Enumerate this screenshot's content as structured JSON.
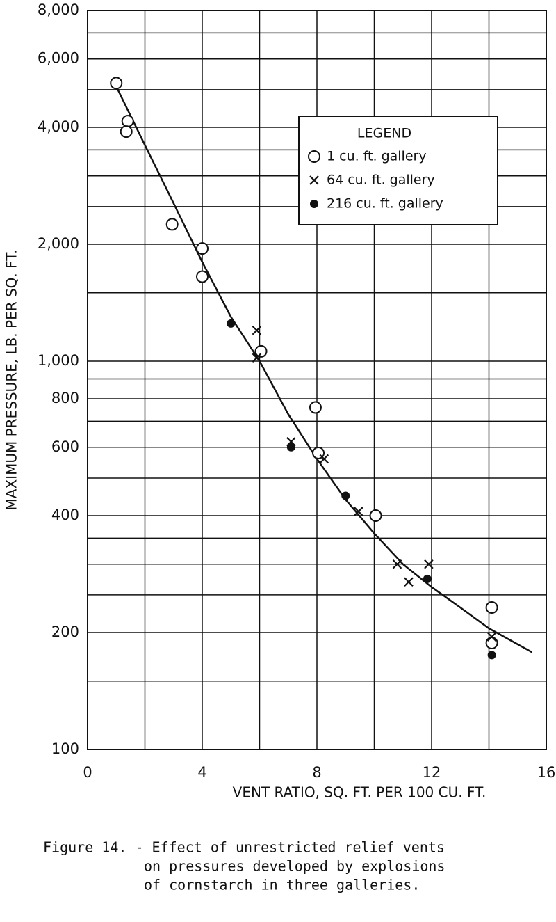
{
  "chart_data": {
    "type": "scatter",
    "y_label": "MAXIMUM PRESSURE, LB. PER SQ. FT.",
    "x_label": "VENT RATIO, SQ. FT. PER 100 CU. FT.",
    "log_y": true,
    "grid": true,
    "xlim": [
      0,
      16
    ],
    "xticks": [
      0,
      4,
      8,
      12,
      16
    ],
    "x_minor_ticks": [
      2,
      6,
      10,
      14
    ],
    "ylim": [
      100,
      8000
    ],
    "yticks": [
      100,
      200,
      400,
      600,
      800,
      {
        "value": 1000,
        "label": "1,000"
      },
      {
        "value": 2000,
        "label": "2,000"
      },
      {
        "value": 4000,
        "label": "4,000"
      },
      {
        "value": 6000,
        "label": "6,000"
      },
      {
        "value": 8000,
        "label": "8,000"
      }
    ],
    "y_minor_ticks": [
      150,
      250,
      300,
      350,
      500,
      700,
      900,
      1500,
      2500,
      3000,
      3500,
      5000,
      7000
    ],
    "legend_title": "LEGEND",
    "legend_position": "upper right",
    "series": [
      {
        "name": "1 cu. ft. gallery",
        "marker": "open-circle",
        "color": "#111111",
        "x": [
          1.0,
          1.4,
          1.35,
          2.95,
          4.0,
          4.0,
          6.05,
          7.95,
          8.05,
          10.05,
          14.1,
          14.1
        ],
        "values": [
          5200,
          4150,
          3900,
          2250,
          1950,
          1650,
          1060,
          760,
          580,
          400,
          232,
          188
        ]
      },
      {
        "name": "64 cu. ft. gallery",
        "marker": "cross",
        "color": "#111111",
        "x": [
          5.9,
          5.9,
          7.1,
          8.25,
          9.45,
          10.8,
          11.2,
          11.9,
          14.1
        ],
        "values": [
          1200,
          1020,
          620,
          560,
          410,
          300,
          270,
          300,
          195
        ]
      },
      {
        "name": "216 cu. ft. gallery",
        "marker": "filled-circle",
        "color": "#111111",
        "x": [
          5.0,
          7.1,
          9.0,
          11.85,
          14.1
        ],
        "values": [
          1250,
          600,
          450,
          275,
          175
        ]
      }
    ],
    "fit_curve": {
      "color": "#111111",
      "x": [
        1.0,
        2,
        3,
        4,
        5,
        6,
        7,
        8,
        9,
        10,
        11,
        12,
        13,
        14,
        15.5
      ],
      "values": [
        5100,
        3600,
        2550,
        1800,
        1300,
        1000,
        730,
        560,
        440,
        360,
        300,
        262,
        232,
        205,
        178
      ]
    },
    "caption": [
      "Figure 14. - Effect of unrestricted relief vents",
      "on pressures developed by explosions",
      "of cornstarch in three galleries."
    ]
  }
}
